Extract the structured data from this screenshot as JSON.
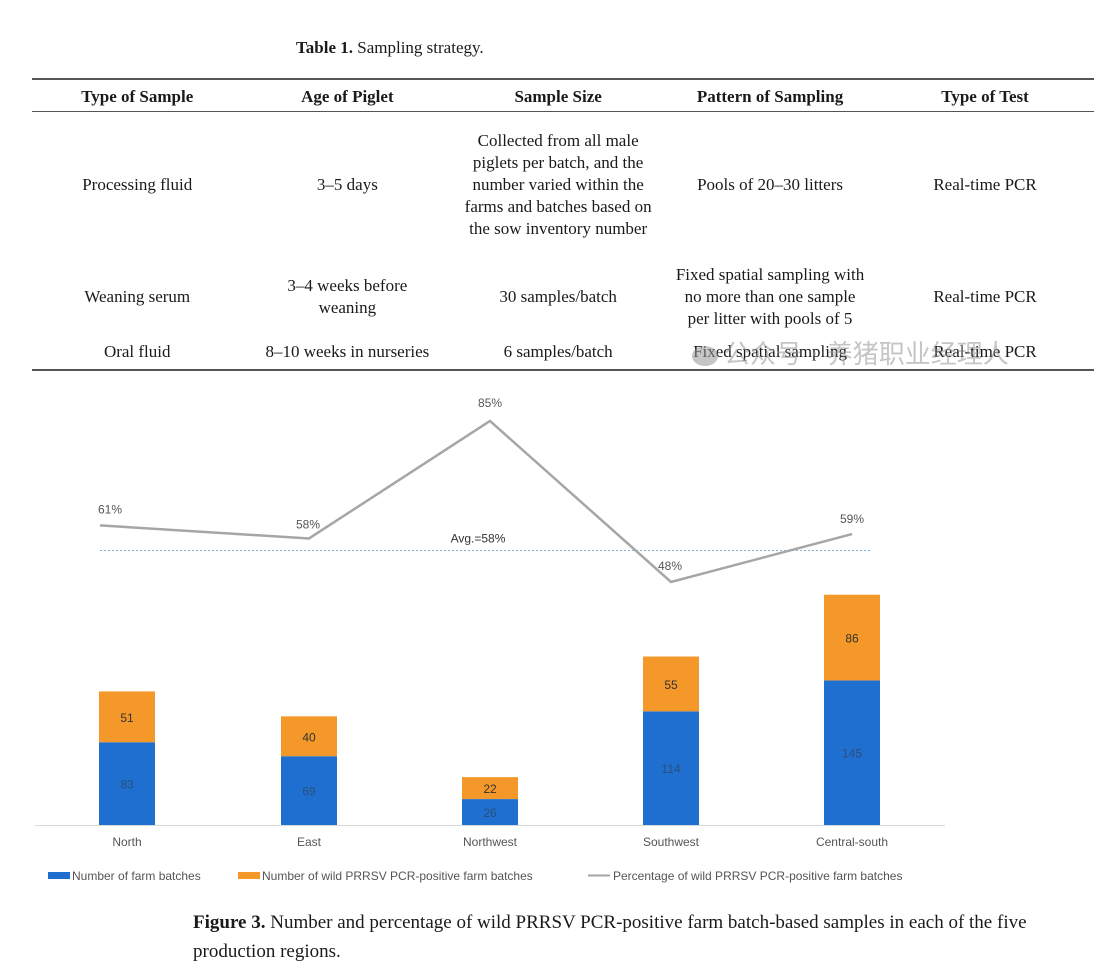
{
  "table": {
    "caption_label": "Table 1.",
    "caption_text": " Sampling strategy.",
    "headers": [
      "Type of Sample",
      "Age of Piglet",
      "Sample Size",
      "Pattern of Sampling",
      "Type of Test"
    ],
    "rows": [
      [
        "Processing fluid",
        "3–5 days",
        "Collected from all male piglets per batch, and the number varied within the farms and batches based on the sow inventory number",
        "Pools of 20–30 litters",
        "Real-time PCR"
      ],
      [
        "Weaning serum",
        "3–4 weeks before weaning",
        "30 samples/batch",
        "Fixed spatial sampling with no more than one sample per litter with pools of 5",
        "Real-time PCR"
      ],
      [
        "Oral fluid",
        "8–10 weeks in nurseries",
        "6 samples/batch",
        "Fixed spatial sampling",
        "Real-time PCR"
      ]
    ]
  },
  "chart_data": {
    "type": "bar",
    "stacked": true,
    "categories": [
      "North",
      "East",
      "Northwest",
      "Southwest",
      "Central-south"
    ],
    "series": [
      {
        "name": "Number of farm batches",
        "values": [
          83,
          69,
          26,
          114,
          145
        ],
        "color": "#1f6fd1"
      },
      {
        "name": "Number of wild PRRSV PCR-positive farm batches",
        "values": [
          51,
          40,
          22,
          55,
          86
        ],
        "color": "#f5982a"
      }
    ],
    "line_series": {
      "name": "Percentage of wild PRRSV PCR-positive farm batches",
      "values": [
        61,
        58,
        85,
        48,
        59
      ],
      "labels": [
        "61%",
        "58%",
        "85%",
        "48%",
        "59%"
      ],
      "color": "#a6a6a6"
    },
    "average": {
      "value": 58,
      "label": "Avg.=58%",
      "color": "#7fb0d8"
    },
    "legend_position": "bottom"
  },
  "figure": {
    "caption_label": "Figure 3.",
    "caption_text": " Number and percentage of wild PRRSV PCR-positive farm batch-based samples in each of the five production regions."
  },
  "watermark": {
    "text": "公众号 · 养猪职业经理人"
  }
}
